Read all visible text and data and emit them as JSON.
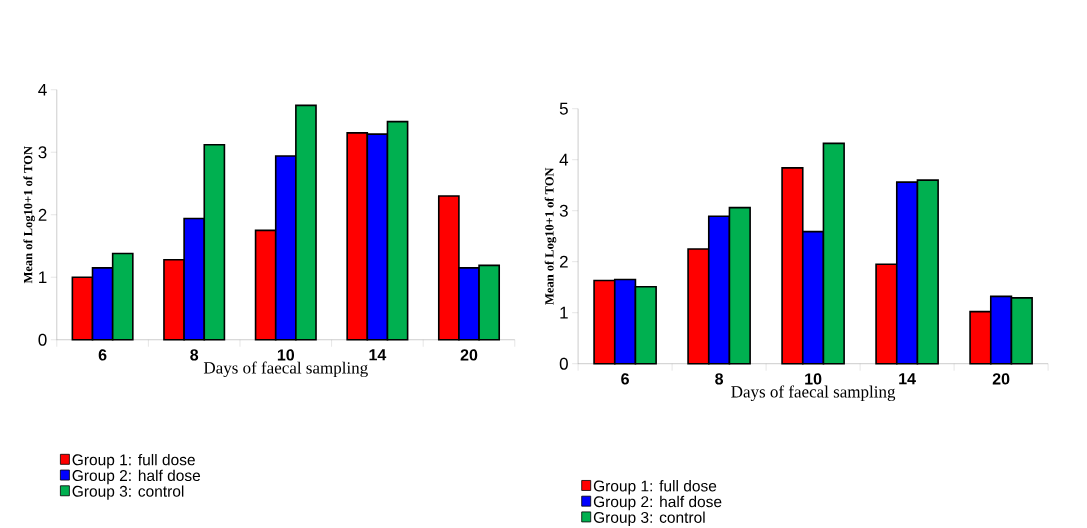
{
  "chart_data": [
    {
      "type": "bar",
      "categories": [
        "6",
        "8",
        "10",
        "14",
        "20"
      ],
      "xlabel": "Days of faecal sampling",
      "ylabel": "Mean of Log10+1 of TON",
      "ylim": [
        0,
        4
      ],
      "yticks": [
        0,
        1,
        2,
        3,
        4
      ],
      "legend": "bottom left",
      "series": [
        {
          "name": "Group 1: full dose",
          "color": "#ff0000",
          "values": [
            1.0,
            1.28,
            1.75,
            3.31,
            2.3
          ]
        },
        {
          "name": "Group 2: half dose",
          "color": "#0000ff",
          "values": [
            1.15,
            1.94,
            2.94,
            3.29,
            1.15
          ]
        },
        {
          "name": "Group 3: control",
          "color": "#00b050",
          "values": [
            1.38,
            3.12,
            3.75,
            3.49,
            1.19
          ]
        }
      ]
    },
    {
      "type": "bar",
      "categories": [
        "6",
        "8",
        "10",
        "14",
        "20"
      ],
      "xlabel": "Days of faecal sampling",
      "ylabel": "Mean of Log10+1 of TON",
      "ylim": [
        0,
        5
      ],
      "yticks": [
        0,
        1,
        2,
        3,
        4,
        5
      ],
      "legend": "bottom left",
      "series": [
        {
          "name": "Group 1: full dose",
          "color": "#ff0000",
          "values": [
            1.63,
            2.25,
            3.84,
            1.95,
            1.02
          ]
        },
        {
          "name": "Group 2: half dose",
          "color": "#0000ff",
          "values": [
            1.65,
            2.89,
            2.59,
            3.56,
            1.32
          ]
        },
        {
          "name": "Group 3: control",
          "color": "#00b050",
          "values": [
            1.51,
            3.06,
            4.32,
            3.6,
            1.29
          ]
        }
      ]
    }
  ]
}
